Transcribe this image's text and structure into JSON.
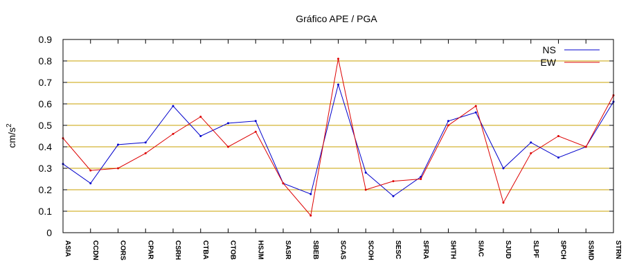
{
  "chart_data": {
    "type": "line",
    "title": "Gráfico  APE / PGA",
    "xlabel": "",
    "ylabel": "cm/s",
    "ylabel_superscript": "2",
    "ylim": [
      0,
      0.9
    ],
    "yticks": [
      "0",
      "0.1",
      "0.2",
      "0.3",
      "0.4",
      "0.5",
      "0.6",
      "0.7",
      "0.8",
      "0.9"
    ],
    "ytick_values": [
      0,
      0.1,
      0.2,
      0.3,
      0.4,
      0.5,
      0.6,
      0.7,
      0.8,
      0.9
    ],
    "grid": "horizontal",
    "grid_color": "#c8a000",
    "legend_position": "top-right",
    "categories": [
      "ASIA",
      "CCDN",
      "CORS",
      "CPAR",
      "CSRH",
      "CTBA",
      "CTOB",
      "HSJM",
      "SASR",
      "SBEB",
      "SCAS",
      "SCOH",
      "SESC",
      "SFRA",
      "SHTH",
      "SIAC",
      "SJUD",
      "SLPF",
      "SPCH",
      "SSMD",
      "STRN"
    ],
    "series": [
      {
        "name": "NS",
        "color": "#0000cc",
        "values": [
          0.32,
          0.23,
          0.41,
          0.42,
          0.59,
          0.45,
          0.51,
          0.52,
          0.23,
          0.18,
          0.69,
          0.28,
          0.17,
          0.26,
          0.52,
          0.56,
          0.3,
          0.42,
          0.35,
          0.4,
          0.61
        ]
      },
      {
        "name": "EW",
        "color": "#dd0000",
        "values": [
          0.44,
          0.29,
          0.3,
          0.37,
          0.46,
          0.54,
          0.4,
          0.47,
          0.23,
          0.08,
          0.81,
          0.2,
          0.24,
          0.25,
          0.5,
          0.59,
          0.14,
          0.37,
          0.45,
          0.4,
          0.64
        ]
      }
    ]
  }
}
